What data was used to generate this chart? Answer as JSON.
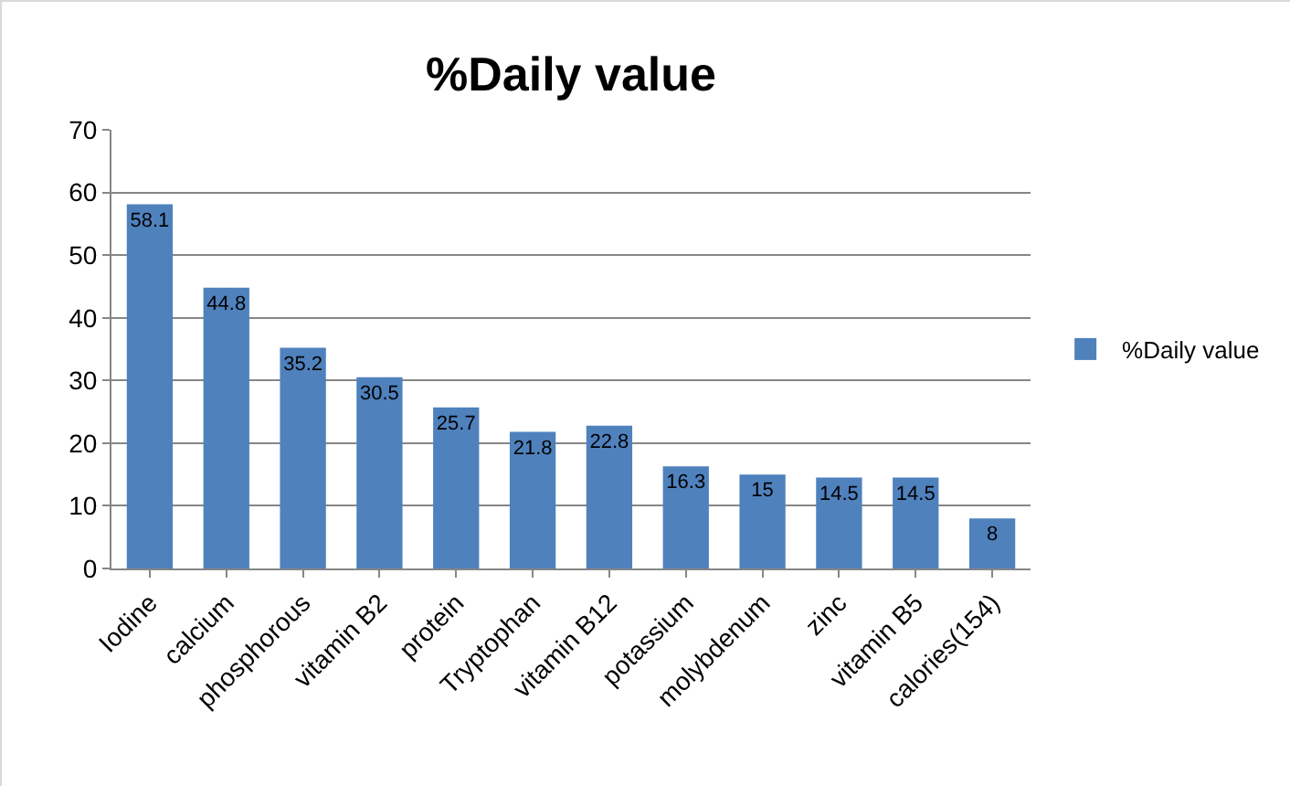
{
  "chart_data": {
    "type": "bar",
    "title": "%Daily value",
    "categories": [
      "Iodine",
      "calcium",
      "phosphorous",
      "vitamin B2",
      "protein",
      "Tryptophan",
      "vitamin B12",
      "potassium",
      "molybdenum",
      "zinc",
      "vitamin B5",
      "calories(154)"
    ],
    "series": [
      {
        "name": "%Daily value",
        "color": "#4f81bd",
        "values": [
          58.1,
          44.8,
          35.2,
          30.5,
          25.7,
          21.8,
          22.8,
          16.3,
          15,
          14.5,
          14.5,
          8
        ]
      }
    ],
    "ylim": [
      0,
      70
    ],
    "yticks": [
      0,
      10,
      20,
      30,
      40,
      50,
      60,
      70
    ],
    "grid": "y",
    "legend": "right",
    "data_labels": true
  }
}
